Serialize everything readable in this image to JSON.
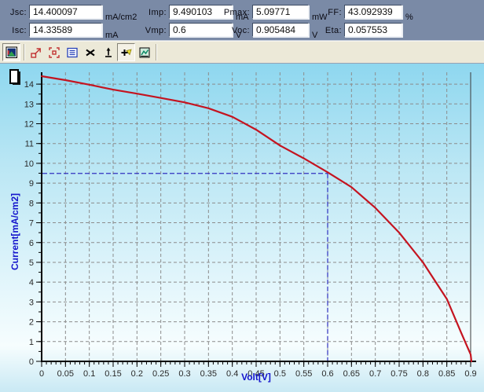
{
  "panel": {
    "fields": [
      {
        "label": "Jsc:",
        "value": "14.400097",
        "unit": "mA/cm2"
      },
      {
        "label": "Isc:",
        "value": "14.33589",
        "unit": "mA"
      },
      {
        "label": "Imp:",
        "value": "9.490103",
        "unit": "mA"
      },
      {
        "label": "Vmp:",
        "value": "0.6",
        "unit": "V"
      },
      {
        "label": "Pmax:",
        "value": "5.09771",
        "unit": "mW"
      },
      {
        "label": "Voc:",
        "value": "0.905484",
        "unit": "V"
      },
      {
        "label": "FF:",
        "value": "43.092939",
        "unit": "%"
      },
      {
        "label": "Eta:",
        "value": "0.057553",
        "unit": ""
      }
    ]
  },
  "toolbar": {
    "buttons": [
      {
        "name": "graph-image",
        "pressed": true
      },
      {
        "name": "zoom-out",
        "pressed": false
      },
      {
        "name": "zoom-region",
        "pressed": false
      },
      {
        "name": "legend",
        "pressed": false
      },
      {
        "name": "no-cursor",
        "pressed": false
      },
      {
        "name": "track-cursor",
        "pressed": false
      },
      {
        "name": "crosshair-cursor",
        "pressed": true
      },
      {
        "name": "graph-settings",
        "pressed": false
      }
    ]
  },
  "colors": {
    "panel_bg": "#7a8aa6",
    "toolbar_bg": "#ece9d8",
    "curve": "#c41420",
    "crosshair": "#3030c0",
    "grid": "#8c8c8c",
    "axis": "#000000",
    "tick_label": "#2a2a2a",
    "axis_title": "#1414cc",
    "chart_bg_top": "#8ed7ef",
    "chart_bg_bottom": "#c9e9f4"
  },
  "chart_data": {
    "type": "line",
    "title": "",
    "xlabel": "Volt[V]",
    "ylabel": "Current[mA/cm2]",
    "xlim": [
      0,
      0.9
    ],
    "ylim": [
      0,
      14.4
    ],
    "grid": true,
    "x_ticks": [
      "0",
      "0.05",
      "0.1",
      "0.15",
      "0.2",
      "0.25",
      "0.3",
      "0.35",
      "0.4",
      "0.45",
      "0.5",
      "0.55",
      "0.6",
      "0.65",
      "0.7",
      "0.75",
      "0.8",
      "0.85",
      "0.9"
    ],
    "y_ticks": [
      "0",
      "1",
      "2",
      "3",
      "4",
      "5",
      "6",
      "7",
      "8",
      "9",
      "10",
      "11",
      "12",
      "13",
      "14"
    ],
    "x_minor_step": 0.01,
    "y_minor_step": 0.5,
    "series": [
      {
        "name": "I-V curve",
        "color": "#c41420",
        "x": [
          0,
          0.05,
          0.1,
          0.15,
          0.2,
          0.25,
          0.3,
          0.35,
          0.4,
          0.45,
          0.5,
          0.55,
          0.6,
          0.65,
          0.7,
          0.75,
          0.8,
          0.85,
          0.88,
          0.9,
          0.905
        ],
        "y": [
          14.4,
          14.2,
          13.97,
          13.72,
          13.52,
          13.3,
          13.08,
          12.78,
          12.35,
          11.7,
          10.9,
          10.25,
          9.55,
          8.8,
          7.75,
          6.5,
          5.0,
          3.15,
          1.45,
          0.35,
          0
        ]
      }
    ],
    "crosshair": {
      "x": 0.6,
      "y": 9.490103,
      "color": "#3030c0"
    }
  }
}
